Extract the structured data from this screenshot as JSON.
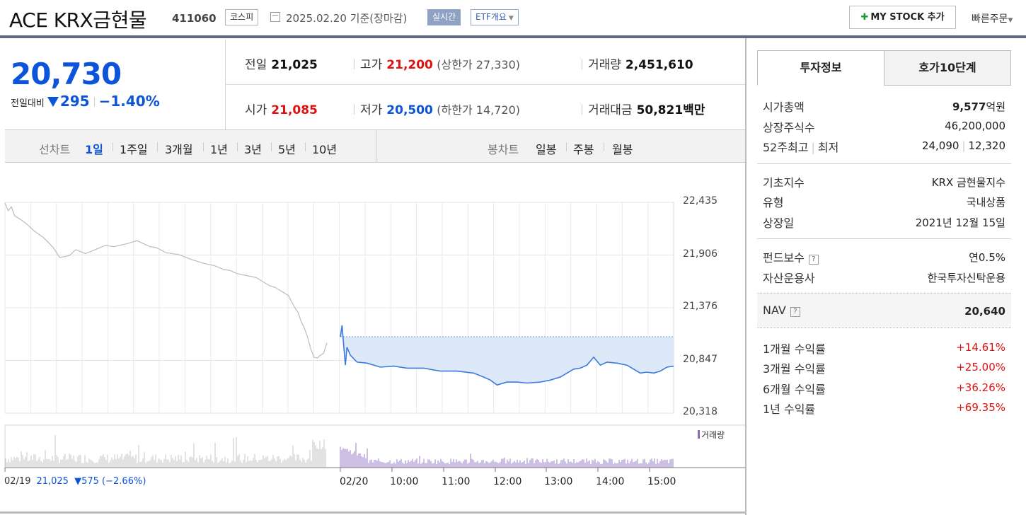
{
  "header": {
    "title": "ACE KRX금현물",
    "code": "411060",
    "market": "코스피",
    "date": "2025.02.20 기준(장마감)",
    "realtime": "실시간",
    "etf_overview": "ETF개요",
    "my_stock": "MY STOCK 추가",
    "quick_order": "빠른주문"
  },
  "quote": {
    "price": "20,730",
    "change_label": "전일대비",
    "change": "295",
    "change_pct": "−1.40%",
    "direction": "down",
    "prev_close_label": "전일",
    "prev_close": "21,025",
    "high_label": "고가",
    "high": "21,200",
    "upper_limit": "(상한가 27,330)",
    "volume_label": "거래량",
    "volume": "2,451,610",
    "open_label": "시가",
    "open": "21,085",
    "low_label": "저가",
    "low": "20,500",
    "lower_limit": "(하한가 14,720)",
    "amount_label": "거래대금",
    "amount": "50,821",
    "amount_unit": "백만"
  },
  "range_bar": {
    "line_chart_label": "선차트",
    "ranges": [
      "1일",
      "1주일",
      "3개월",
      "1년",
      "3년",
      "5년",
      "10년"
    ],
    "selected": "1일",
    "candle_label": "봉차트",
    "candles": [
      "일봉",
      "주봉",
      "월봉"
    ]
  },
  "chart_data": {
    "type": "line",
    "y_ticks": [
      "22,435",
      "21,906",
      "21,376",
      "20,847",
      "20,318"
    ],
    "ylim": [
      20318,
      22435
    ],
    "x_ticks": [
      "02/20",
      "10:00",
      "11:00",
      "12:00",
      "13:00",
      "14:00",
      "15:00"
    ],
    "volume_legend": "거래량",
    "prev_day": {
      "date": "02/19",
      "price": "21,025",
      "change": "▼575 (−2.66%)"
    },
    "series": [
      {
        "name": "02/19",
        "color": "#bbbbbb",
        "x": [
          0,
          0.01,
          0.02,
          0.03,
          0.05,
          0.07,
          0.09,
          0.12,
          0.15,
          0.17,
          0.2,
          0.22,
          0.25,
          0.28,
          0.31,
          0.34,
          0.38,
          0.41,
          0.43,
          0.45,
          0.47,
          0.5,
          0.54,
          0.58,
          0.62,
          0.65,
          0.68,
          0.7,
          0.72,
          0.75,
          0.78,
          0.8,
          0.82,
          0.84,
          0.86,
          0.88,
          0.89,
          0.9,
          0.91,
          0.92,
          0.93,
          0.94,
          0.95,
          0.96,
          0.97,
          0.98,
          0.99,
          1.0
        ],
        "values": [
          22430,
          22350,
          22390,
          22300,
          22260,
          22210,
          22150,
          22080,
          21980,
          21880,
          21900,
          21960,
          21920,
          21960,
          22000,
          21990,
          22020,
          22050,
          22020,
          21990,
          21980,
          21930,
          21910,
          21860,
          21820,
          21800,
          21760,
          21750,
          21720,
          21700,
          21680,
          21640,
          21600,
          21580,
          21540,
          21500,
          21440,
          21380,
          21330,
          21240,
          21170,
          21080,
          20960,
          20880,
          20870,
          20900,
          20920,
          21025
        ]
      },
      {
        "name": "02/20",
        "color": "#3a7be0",
        "x": [
          0,
          0.005,
          0.01,
          0.015,
          0.02,
          0.03,
          0.05,
          0.08,
          0.12,
          0.16,
          0.2,
          0.25,
          0.3,
          0.35,
          0.4,
          0.43,
          0.45,
          0.47,
          0.5,
          0.53,
          0.56,
          0.6,
          0.63,
          0.66,
          0.68,
          0.7,
          0.72,
          0.74,
          0.76,
          0.78,
          0.8,
          0.83,
          0.86,
          0.88,
          0.9,
          0.92,
          0.94,
          0.96,
          0.98,
          1.0
        ],
        "values": [
          21085,
          21200,
          21000,
          20800,
          20980,
          20900,
          20830,
          20820,
          20780,
          20790,
          20770,
          20770,
          20740,
          20740,
          20720,
          20680,
          20650,
          20600,
          20630,
          20630,
          20620,
          20630,
          20650,
          20680,
          20720,
          20760,
          20770,
          20800,
          20880,
          20800,
          20830,
          20820,
          20800,
          20760,
          20720,
          20730,
          20720,
          20740,
          20780,
          20790
        ]
      }
    ]
  },
  "right_panel": {
    "tabs": [
      "투자정보",
      "호가10단계"
    ],
    "market_cap": {
      "label": "시가총액",
      "value": "9,577",
      "unit": "억원"
    },
    "shares": {
      "label": "상장주식수",
      "value": "46,200,000"
    },
    "week52": {
      "label": "52주최고",
      "label2": "최저",
      "value": "24,090",
      "value2": "12,320"
    },
    "base_index": {
      "label": "기초지수",
      "value": "KRX 금현물지수"
    },
    "type": {
      "label": "유형",
      "value": "국내상품"
    },
    "listing_date": {
      "label": "상장일",
      "value": "2021년 12월 15일"
    },
    "fee": {
      "label": "펀드보수",
      "value": "연0.5%"
    },
    "manager": {
      "label": "자산운용사",
      "value": "한국투자신탁운용"
    },
    "nav": {
      "label": "NAV",
      "value": "20,640"
    },
    "returns": [
      {
        "label": "1개월 수익률",
        "value": "+14.61%"
      },
      {
        "label": "3개월 수익률",
        "value": "+25.00%"
      },
      {
        "label": "6개월 수익률",
        "value": "+36.26%"
      },
      {
        "label": "1년 수익률",
        "value": "+69.35%"
      }
    ],
    "help_icon": "question-icon"
  }
}
